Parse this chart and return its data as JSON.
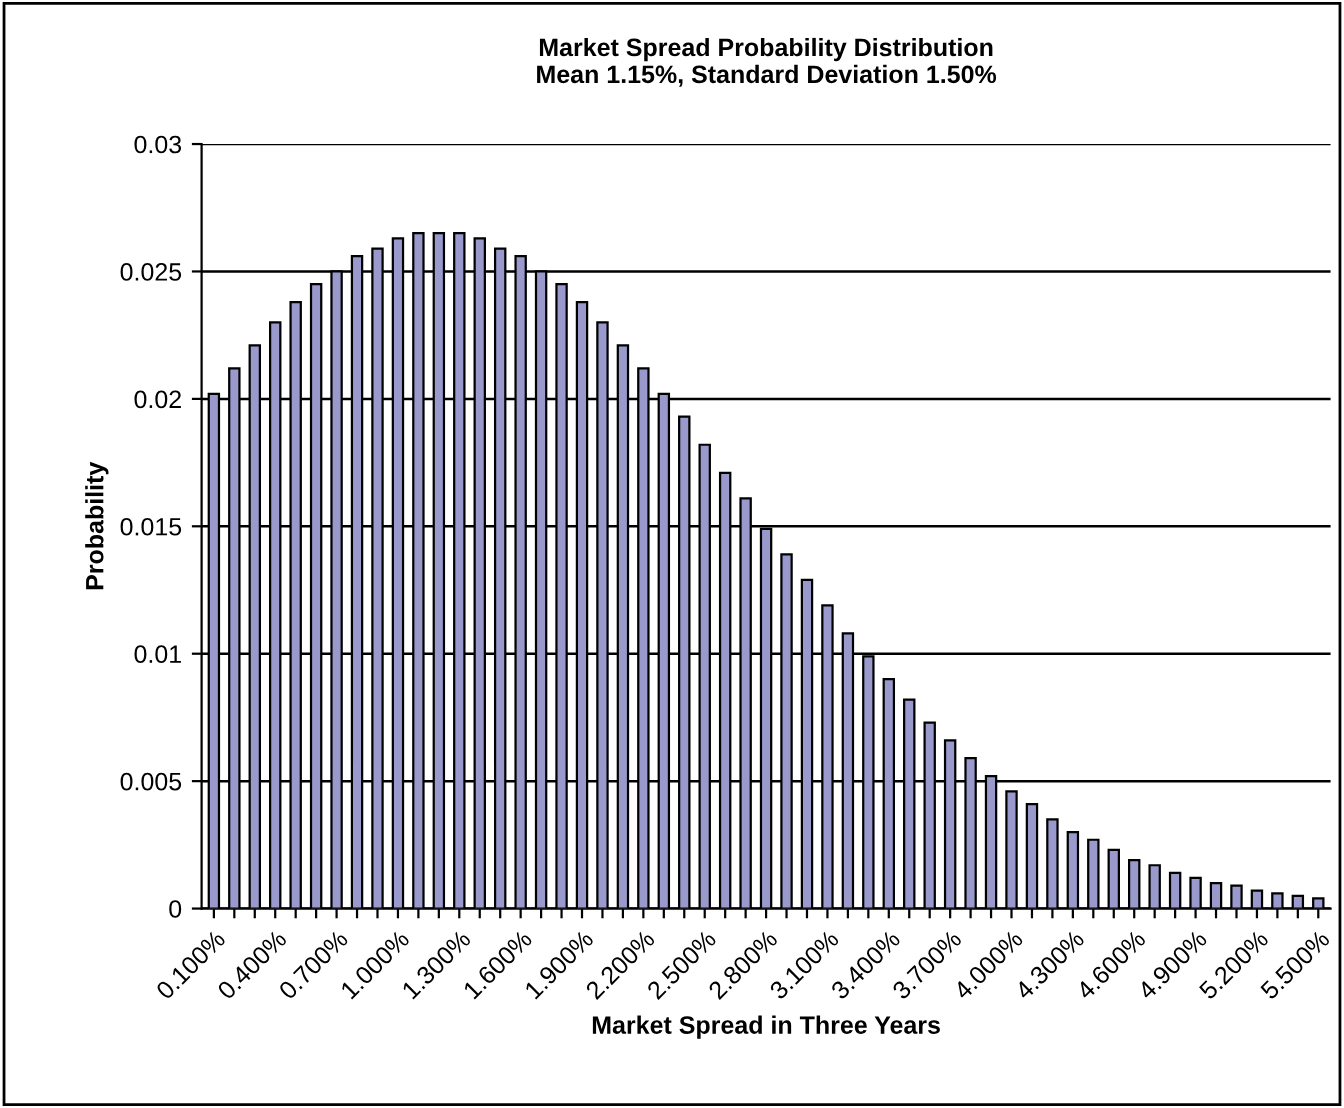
{
  "chart_data": {
    "type": "bar",
    "title": "Market Spread Probability Distribution\nMean 1.15%, Standard Deviation 1.50%",
    "xlabel": "Market Spread in Three Years",
    "ylabel": "Probability",
    "categories": [
      "0.100%",
      null,
      null,
      "0.400%",
      null,
      null,
      "0.700%",
      null,
      null,
      "1.000%",
      null,
      null,
      "1.300%",
      null,
      null,
      "1.600%",
      null,
      null,
      "1.900%",
      null,
      null,
      "2.200%",
      null,
      null,
      "2.500%",
      null,
      null,
      "2.800%",
      null,
      null,
      "3.100%",
      null,
      null,
      "3.400%",
      null,
      null,
      "3.700%",
      null,
      null,
      "4.000%",
      null,
      null,
      "4.300%",
      null,
      null,
      "4.600%",
      null,
      null,
      "4.900%",
      null,
      null,
      "5.200%",
      null,
      null,
      "5.500%"
    ],
    "values": [
      0.0202,
      0.0212,
      0.0221,
      0.023,
      0.0238,
      0.0245,
      0.025,
      0.0256,
      0.0259,
      0.0263,
      0.0265,
      0.0265,
      0.0265,
      0.0263,
      0.0259,
      0.0256,
      0.025,
      0.0245,
      0.0238,
      0.023,
      0.0221,
      0.0212,
      0.0202,
      0.0193,
      0.0182,
      0.0171,
      0.0161,
      0.0149,
      0.0139,
      0.0129,
      0.0119,
      0.0108,
      0.0099,
      0.009,
      0.0082,
      0.0073,
      0.0066,
      0.0059,
      0.0052,
      0.0046,
      0.0041,
      0.0035,
      0.003,
      0.0027,
      0.0023,
      0.0019,
      0.0017,
      0.0014,
      0.0012,
      0.001,
      0.0009,
      0.0007,
      0.0006,
      0.0005,
      0.0004
    ],
    "color": "#9999cc",
    "ylim": [
      0,
      0.03
    ],
    "yticks": [
      0,
      0.005,
      0.01,
      0.015,
      0.02,
      0.025,
      0.03
    ],
    "grid": "y",
    "legend": false
  }
}
